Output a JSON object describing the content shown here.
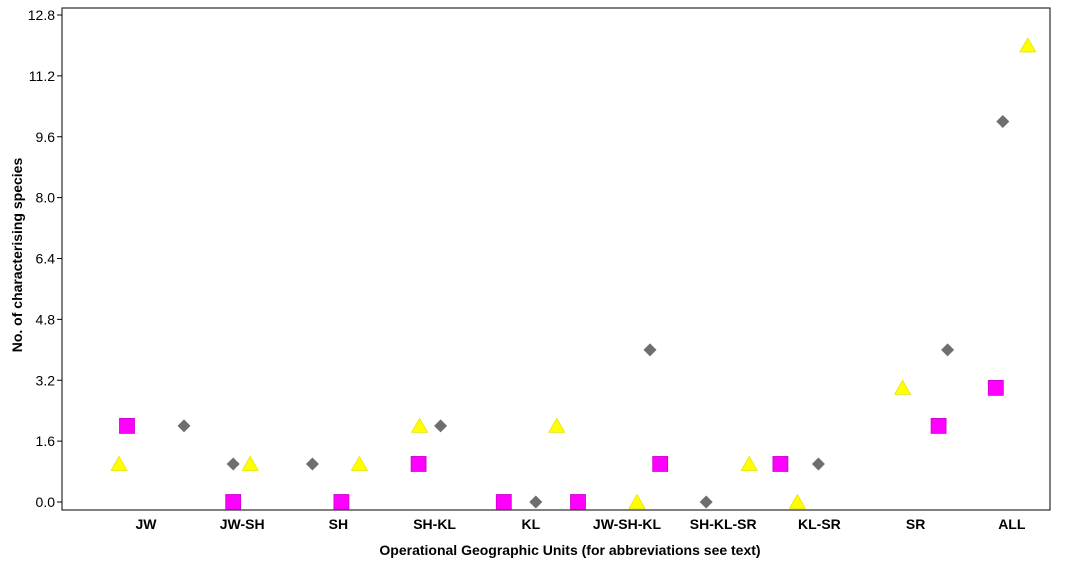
{
  "chart_data": {
    "type": "scatter",
    "title": "",
    "xlabel": "Operational Geographic Units (for abbreviations see text)",
    "ylabel": "No. of characterising species",
    "categories": [
      "JW",
      "JW-SH",
      "SH",
      "SH-KL",
      "KL",
      "JW-SH-KL",
      "SH-KL-SR",
      "KL-SR",
      "SR",
      "ALL"
    ],
    "ylim": [
      0,
      12.8
    ],
    "yticks": [
      "0.0",
      "1.6",
      "3.2",
      "4.8",
      "6.4",
      "8.0",
      "9.6",
      "11.2",
      "12.8"
    ],
    "grid": false,
    "legend": "none",
    "series": [
      {
        "marker": "triangle",
        "color": "#ffff00",
        "values": [
          1,
          1,
          1,
          2,
          2,
          0,
          1,
          0,
          3,
          12
        ]
      },
      {
        "marker": "square",
        "color": "#ff00ff",
        "values": [
          2,
          0,
          0,
          1,
          0,
          0,
          1,
          1,
          2,
          3
        ]
      },
      {
        "marker": "diamond",
        "color": "#6e6e6e",
        "values": [
          2,
          1,
          1,
          2,
          0,
          4,
          0,
          1,
          4,
          10
        ]
      }
    ]
  }
}
